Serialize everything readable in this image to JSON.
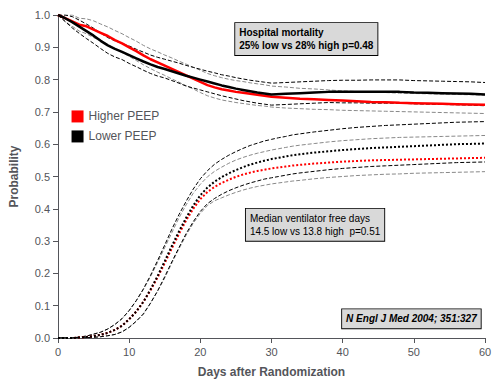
{
  "chart_data": {
    "type": "line",
    "xlabel": "Days after Randomization",
    "ylabel": "Probability",
    "annotations": [
      "Hospital mortality\n25% low vs 28% high p=0.48",
      "Median ventilator free days\n14.5 low vs 13.8 high  p=0.51",
      "N Engl J Med 2004; 351:327"
    ],
    "xlim": [
      0,
      60
    ],
    "ylim": [
      0.0,
      1.0
    ],
    "xticks": [
      0,
      10,
      20,
      30,
      40,
      50,
      60
    ],
    "yticks": [
      {
        "value": 0.0,
        "label": "0.0"
      },
      0.1,
      0.2,
      0.3,
      0.4,
      0.5,
      0.6,
      0.7,
      0.8,
      0.9,
      {
        "value": 1.0,
        "label": "1.0"
      }
    ],
    "grid": false,
    "legend": "upper left",
    "series": [
      {
        "color": "#888888",
        "line_style": "dashed",
        "x": [
          0,
          1,
          2,
          3,
          4,
          5,
          6,
          7,
          8,
          9,
          10,
          11,
          12,
          13,
          14,
          15,
          16,
          17,
          18,
          19,
          20,
          21,
          22,
          23,
          24,
          25,
          26,
          27,
          28,
          29,
          30,
          32,
          34,
          36,
          38,
          40,
          42,
          44,
          46,
          48,
          50,
          52,
          54,
          56,
          58,
          60
        ],
        "values": [
          1.0,
          1.0,
          1.0,
          0.99,
          0.988,
          0.982,
          0.972,
          0.963,
          0.952,
          0.942,
          0.93,
          0.919,
          0.906,
          0.895,
          0.886,
          0.876,
          0.867,
          0.857,
          0.848,
          0.838,
          0.829,
          0.819,
          0.812,
          0.806,
          0.801,
          0.797,
          0.794,
          0.79,
          0.787,
          0.784,
          0.78,
          0.777,
          0.773,
          0.771,
          0.768,
          0.765,
          0.763,
          0.761,
          0.76,
          0.758,
          0.757,
          0.756,
          0.755,
          0.754,
          0.753,
          0.752
        ]
      },
      {
        "color": "#888888",
        "line_style": "dashed",
        "x": [
          0,
          1,
          2,
          3,
          4,
          5,
          6,
          7,
          8,
          9,
          10,
          11,
          12,
          13,
          14,
          15,
          16,
          17,
          18,
          19,
          20,
          21,
          22,
          23,
          24,
          25,
          26,
          27,
          28,
          29,
          30,
          32,
          34,
          36,
          38,
          40,
          42,
          44,
          46,
          48,
          50,
          52,
          54,
          56,
          58,
          60
        ],
        "values": [
          1.0,
          0.98,
          0.965,
          0.95,
          0.942,
          0.93,
          0.92,
          0.909,
          0.895,
          0.884,
          0.872,
          0.859,
          0.846,
          0.834,
          0.823,
          0.813,
          0.802,
          0.792,
          0.781,
          0.771,
          0.76,
          0.75,
          0.743,
          0.737,
          0.733,
          0.729,
          0.726,
          0.723,
          0.72,
          0.718,
          0.715,
          0.712,
          0.71,
          0.708,
          0.707,
          0.705,
          0.704,
          0.703,
          0.702,
          0.701,
          0.7,
          0.699,
          0.698,
          0.697,
          0.696,
          0.695
        ]
      },
      {
        "color": "black",
        "line_style": "dashed",
        "x": [
          0,
          1,
          2,
          3,
          4,
          5,
          6,
          7,
          8,
          9,
          10,
          11,
          12,
          13,
          14,
          15,
          16,
          17,
          18,
          19,
          20,
          21,
          22,
          23,
          24,
          25,
          26,
          27,
          28,
          29,
          30,
          32,
          34,
          36,
          38,
          40,
          42,
          44,
          46,
          48,
          50,
          52,
          54,
          56,
          58,
          60
        ],
        "values": [
          1.0,
          1.0,
          0.995,
          0.984,
          0.972,
          0.959,
          0.944,
          0.93,
          0.92,
          0.912,
          0.904,
          0.894,
          0.885,
          0.876,
          0.869,
          0.863,
          0.857,
          0.851,
          0.844,
          0.838,
          0.832,
          0.826,
          0.821,
          0.815,
          0.811,
          0.806,
          0.802,
          0.798,
          0.795,
          0.792,
          0.789,
          0.791,
          0.793,
          0.795,
          0.797,
          0.798,
          0.798,
          0.799,
          0.799,
          0.799,
          0.797,
          0.796,
          0.795,
          0.794,
          0.793,
          0.791
        ]
      },
      {
        "color": "black",
        "line_style": "dashed",
        "x": [
          0,
          1,
          2,
          3,
          4,
          5,
          6,
          7,
          8,
          9,
          10,
          11,
          12,
          13,
          14,
          15,
          16,
          17,
          18,
          19,
          20,
          21,
          22,
          23,
          24,
          25,
          26,
          27,
          28,
          29,
          30,
          32,
          34,
          36,
          38,
          40,
          42,
          44,
          46,
          48,
          50,
          52,
          54,
          56,
          58,
          60
        ],
        "values": [
          1.0,
          0.98,
          0.96,
          0.943,
          0.927,
          0.912,
          0.896,
          0.881,
          0.87,
          0.862,
          0.85,
          0.84,
          0.829,
          0.819,
          0.811,
          0.805,
          0.797,
          0.789,
          0.78,
          0.774,
          0.768,
          0.762,
          0.756,
          0.75,
          0.745,
          0.74,
          0.735,
          0.731,
          0.727,
          0.724,
          0.721,
          0.723,
          0.725,
          0.727,
          0.729,
          0.728,
          0.728,
          0.727,
          0.727,
          0.727,
          0.725,
          0.724,
          0.723,
          0.722,
          0.721,
          0.719
        ]
      },
      {
        "name": "Higher PEEP",
        "color": "red",
        "line_style": "solid",
        "x": [
          0,
          1,
          2,
          3,
          4,
          5,
          6,
          7,
          8,
          9,
          10,
          11,
          12,
          13,
          14,
          15,
          16,
          17,
          18,
          19,
          20,
          21,
          22,
          23,
          24,
          25,
          26,
          27,
          28,
          29,
          30,
          32,
          34,
          36,
          38,
          40,
          42,
          44,
          46,
          48,
          50,
          52,
          54,
          56,
          58,
          60
        ],
        "values": [
          1.0,
          0.99,
          0.98,
          0.97,
          0.965,
          0.955,
          0.945,
          0.935,
          0.922,
          0.912,
          0.9,
          0.888,
          0.875,
          0.863,
          0.853,
          0.843,
          0.833,
          0.823,
          0.813,
          0.803,
          0.793,
          0.783,
          0.776,
          0.77,
          0.766,
          0.762,
          0.759,
          0.756,
          0.753,
          0.75,
          0.747,
          0.744,
          0.741,
          0.739,
          0.737,
          0.735,
          0.733,
          0.731,
          0.73,
          0.728,
          0.727,
          0.726,
          0.725,
          0.724,
          0.723,
          0.722
        ]
      },
      {
        "name": "Lower PEEP",
        "color": "black",
        "line_style": "solid",
        "x": [
          0,
          1,
          2,
          3,
          4,
          5,
          6,
          7,
          8,
          9,
          10,
          11,
          12,
          13,
          14,
          15,
          16,
          17,
          18,
          19,
          20,
          21,
          22,
          23,
          24,
          25,
          26,
          27,
          28,
          29,
          30,
          32,
          34,
          36,
          38,
          40,
          42,
          44,
          46,
          48,
          50,
          52,
          54,
          56,
          58,
          60
        ],
        "values": [
          1.0,
          0.99,
          0.978,
          0.964,
          0.95,
          0.936,
          0.92,
          0.906,
          0.895,
          0.886,
          0.876,
          0.866,
          0.856,
          0.847,
          0.839,
          0.833,
          0.826,
          0.819,
          0.812,
          0.806,
          0.8,
          0.794,
          0.788,
          0.782,
          0.777,
          0.772,
          0.768,
          0.764,
          0.76,
          0.757,
          0.754,
          0.756,
          0.758,
          0.76,
          0.762,
          0.762,
          0.762,
          0.762,
          0.762,
          0.762,
          0.76,
          0.759,
          0.758,
          0.757,
          0.756,
          0.754
        ]
      },
      {
        "color": "#888888",
        "line_style": "dashed",
        "x": [
          0,
          2,
          4,
          5,
          6,
          7,
          8,
          9,
          10,
          11,
          12,
          13,
          14,
          15,
          16,
          17,
          18,
          19,
          20,
          21,
          22,
          23,
          24,
          25,
          26,
          27,
          28,
          29,
          30,
          31,
          32,
          33,
          34,
          36,
          38,
          40,
          42,
          44,
          46,
          48,
          50,
          52,
          54,
          56,
          58,
          60
        ],
        "values": [
          0.0,
          0.0,
          0.006,
          0.012,
          0.018,
          0.028,
          0.042,
          0.06,
          0.085,
          0.115,
          0.15,
          0.19,
          0.234,
          0.28,
          0.326,
          0.372,
          0.412,
          0.448,
          0.476,
          0.499,
          0.516,
          0.529,
          0.541,
          0.551,
          0.559,
          0.566,
          0.572,
          0.577,
          0.582,
          0.586,
          0.59,
          0.594,
          0.597,
          0.602,
          0.607,
          0.611,
          0.614,
          0.617,
          0.619,
          0.621,
          0.622,
          0.623,
          0.624,
          0.625,
          0.626,
          0.627
        ]
      },
      {
        "color": "#888888",
        "line_style": "dashed",
        "x": [
          0,
          2,
          4,
          5,
          6,
          7,
          8,
          9,
          10,
          11,
          12,
          13,
          14,
          15,
          16,
          17,
          18,
          19,
          20,
          21,
          22,
          23,
          24,
          25,
          26,
          27,
          28,
          29,
          30,
          31,
          32,
          33,
          34,
          36,
          38,
          40,
          42,
          44,
          46,
          48,
          50,
          52,
          54,
          56,
          58,
          60
        ],
        "values": [
          0.0,
          0.0,
          0.001,
          0.002,
          0.004,
          0.007,
          0.011,
          0.019,
          0.033,
          0.052,
          0.076,
          0.108,
          0.145,
          0.186,
          0.232,
          0.276,
          0.318,
          0.355,
          0.386,
          0.41,
          0.425,
          0.434,
          0.443,
          0.451,
          0.458,
          0.464,
          0.469,
          0.473,
          0.477,
          0.48,
          0.483,
          0.486,
          0.488,
          0.493,
          0.497,
          0.5,
          0.503,
          0.505,
          0.507,
          0.508,
          0.51,
          0.511,
          0.512,
          0.513,
          0.514,
          0.515
        ]
      },
      {
        "color": "black",
        "line_style": "dashed",
        "x": [
          0,
          2,
          4,
          5,
          6,
          7,
          8,
          9,
          10,
          11,
          12,
          13,
          14,
          15,
          16,
          17,
          18,
          19,
          20,
          21,
          22,
          23,
          24,
          25,
          26,
          27,
          28,
          29,
          30,
          31,
          32,
          33,
          34,
          36,
          38,
          40,
          42,
          44,
          46,
          48,
          50,
          52,
          54,
          56,
          58,
          60
        ],
        "values": [
          0.0,
          0.0,
          0.006,
          0.012,
          0.018,
          0.028,
          0.042,
          0.06,
          0.085,
          0.116,
          0.152,
          0.194,
          0.24,
          0.288,
          0.337,
          0.382,
          0.423,
          0.461,
          0.493,
          0.518,
          0.538,
          0.553,
          0.566,
          0.577,
          0.587,
          0.596,
          0.603,
          0.61,
          0.615,
          0.62,
          0.624,
          0.629,
          0.632,
          0.638,
          0.643,
          0.648,
          0.652,
          0.655,
          0.658,
          0.66,
          0.662,
          0.664,
          0.666,
          0.668,
          0.669,
          0.67
        ]
      },
      {
        "color": "black",
        "line_style": "dashed",
        "x": [
          0,
          2,
          4,
          5,
          6,
          7,
          8,
          9,
          10,
          11,
          12,
          13,
          14,
          15,
          16,
          17,
          18,
          19,
          20,
          21,
          22,
          23,
          24,
          25,
          26,
          27,
          28,
          29,
          30,
          31,
          32,
          33,
          34,
          36,
          38,
          40,
          42,
          44,
          46,
          48,
          50,
          52,
          54,
          56,
          58,
          60
        ],
        "values": [
          0.0,
          0.0,
          0.001,
          0.002,
          0.004,
          0.007,
          0.011,
          0.019,
          0.033,
          0.052,
          0.074,
          0.108,
          0.146,
          0.19,
          0.236,
          0.28,
          0.323,
          0.36,
          0.392,
          0.416,
          0.432,
          0.445,
          0.456,
          0.465,
          0.473,
          0.48,
          0.486,
          0.492,
          0.496,
          0.5,
          0.504,
          0.508,
          0.511,
          0.516,
          0.521,
          0.525,
          0.528,
          0.531,
          0.533,
          0.535,
          0.537,
          0.539,
          0.541,
          0.543,
          0.544,
          0.545
        ]
      },
      {
        "name": "Higher PEEP",
        "color": "red",
        "line_style": "dotted",
        "x": [
          0,
          2,
          4,
          5,
          6,
          7,
          8,
          9,
          10,
          11,
          12,
          13,
          14,
          15,
          16,
          17,
          18,
          19,
          20,
          21,
          22,
          23,
          24,
          25,
          26,
          27,
          28,
          29,
          30,
          31,
          32,
          33,
          34,
          36,
          38,
          40,
          42,
          44,
          46,
          48,
          50,
          52,
          54,
          56,
          58,
          60
        ],
        "values": [
          0.0,
          0.0,
          0.003,
          0.006,
          0.01,
          0.016,
          0.025,
          0.038,
          0.058,
          0.082,
          0.112,
          0.148,
          0.188,
          0.232,
          0.278,
          0.322,
          0.364,
          0.4,
          0.43,
          0.452,
          0.468,
          0.48,
          0.49,
          0.499,
          0.506,
          0.512,
          0.517,
          0.521,
          0.525,
          0.528,
          0.531,
          0.534,
          0.536,
          0.54,
          0.543,
          0.546,
          0.548,
          0.55,
          0.551,
          0.552,
          0.553,
          0.554,
          0.555,
          0.556,
          0.557,
          0.558
        ]
      },
      {
        "name": "Lower PEEP",
        "color": "black",
        "line_style": "dotted",
        "x": [
          0,
          2,
          4,
          5,
          6,
          7,
          8,
          9,
          10,
          11,
          12,
          13,
          14,
          15,
          16,
          17,
          18,
          19,
          20,
          21,
          22,
          23,
          24,
          25,
          26,
          27,
          28,
          29,
          30,
          31,
          32,
          33,
          34,
          36,
          38,
          40,
          42,
          44,
          46,
          48,
          50,
          52,
          54,
          56,
          58,
          60
        ],
        "values": [
          0.0,
          0.0,
          0.003,
          0.006,
          0.01,
          0.016,
          0.025,
          0.038,
          0.058,
          0.082,
          0.112,
          0.15,
          0.192,
          0.238,
          0.285,
          0.33,
          0.372,
          0.41,
          0.442,
          0.466,
          0.484,
          0.498,
          0.51,
          0.52,
          0.529,
          0.537,
          0.543,
          0.549,
          0.554,
          0.558,
          0.562,
          0.566,
          0.569,
          0.574,
          0.578,
          0.582,
          0.585,
          0.588,
          0.59,
          0.592,
          0.594,
          0.596,
          0.598,
          0.6,
          0.601,
          0.602
        ]
      }
    ]
  }
}
